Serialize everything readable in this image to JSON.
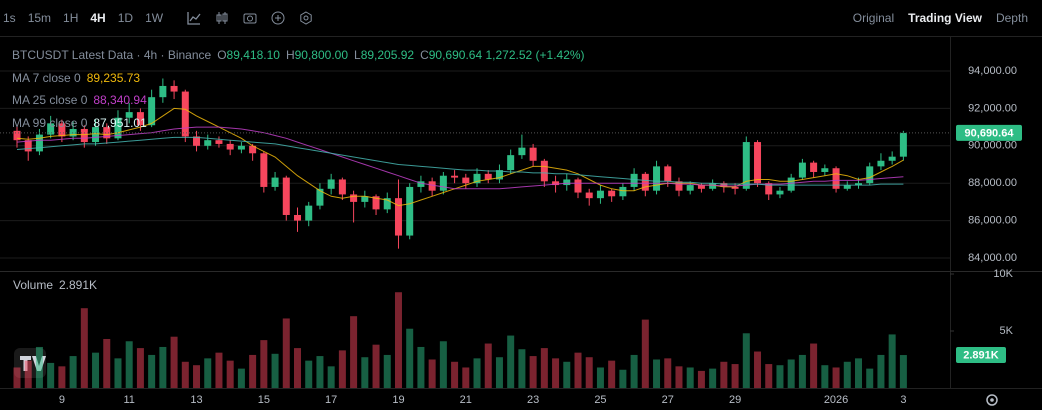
{
  "toolbar": {
    "intervals": [
      "1s",
      "15m",
      "1H",
      "4H",
      "1D",
      "1W"
    ],
    "views": [
      "Original",
      "Trading View",
      "Depth"
    ]
  },
  "chart_data": {
    "type": "candlestick",
    "title": "BTCUSDT Latest Data · 4h · Binance",
    "legend": [
      {
        "key": "O",
        "value": "89,418.10"
      },
      {
        "key": "H",
        "value": "90,800.00"
      },
      {
        "key": "L",
        "value": "89,205.92"
      },
      {
        "key": "C",
        "value": "90,690.64"
      }
    ],
    "change": "1,272.52 (+1.42%)",
    "categories": [
      null,
      null,
      null,
      null,
      "9",
      null,
      null,
      null,
      null,
      null,
      "11",
      null,
      null,
      null,
      null,
      null,
      "13",
      null,
      null,
      null,
      null,
      null,
      "15",
      null,
      null,
      null,
      null,
      null,
      "17",
      null,
      null,
      null,
      null,
      null,
      "19",
      null,
      null,
      null,
      null,
      null,
      "21",
      null,
      null,
      null,
      null,
      null,
      "23",
      null,
      null,
      null,
      null,
      null,
      "25",
      null,
      null,
      null,
      null,
      null,
      "27",
      null,
      null,
      null,
      null,
      null,
      "29",
      null,
      null,
      null,
      null,
      null,
      null,
      null,
      null,
      "2026",
      null,
      null,
      null,
      null,
      null,
      "3"
    ],
    "open": [
      90800,
      90300,
      89700,
      90600,
      91200,
      90500,
      90900,
      90200,
      91000,
      90400,
      91500,
      91800,
      91100,
      92600,
      93200,
      92900,
      90500,
      90000,
      90300,
      90100,
      89800,
      90000,
      89600,
      87800,
      88300,
      86300,
      86000,
      86800,
      87700,
      88200,
      87400,
      87000,
      87300,
      86600,
      87200,
      85200,
      87800,
      88100,
      87600,
      88400,
      88300,
      88000,
      88500,
      88200,
      88700,
      89500,
      89900,
      89200,
      88100,
      87900,
      88200,
      87500,
      87200,
      87600,
      87300,
      87800,
      88500,
      87600,
      88900,
      88100,
      87600,
      87900,
      87700,
      88000,
      87800,
      87700,
      90200,
      88000,
      87400,
      87600,
      88300,
      89100,
      88600,
      88800,
      87700,
      87900,
      88000,
      88900,
      89200,
      89418.1
    ],
    "high": [
      91100,
      90500,
      90900,
      91600,
      91400,
      91300,
      91100,
      91400,
      91200,
      91900,
      92300,
      92000,
      93000,
      93600,
      93500,
      93000,
      90800,
      90600,
      90500,
      90300,
      90200,
      90100,
      89700,
      88600,
      88400,
      86700,
      87000,
      88000,
      88500,
      88300,
      87600,
      87600,
      87400,
      87500,
      88200,
      88000,
      88400,
      88300,
      88600,
      88700,
      88500,
      88800,
      88700,
      89000,
      89800,
      90600,
      90100,
      89300,
      88400,
      88500,
      88300,
      87700,
      87900,
      87700,
      88000,
      88800,
      88600,
      89200,
      89000,
      88300,
      88100,
      88000,
      88200,
      88100,
      88000,
      90500,
      90300,
      88100,
      87800,
      88500,
      89300,
      89200,
      89000,
      88900,
      88100,
      88300,
      89100,
      89600,
      89700,
      90800
    ],
    "low": [
      89900,
      89200,
      89500,
      90400,
      90200,
      90300,
      89900,
      90000,
      90100,
      90300,
      91200,
      90800,
      91000,
      92300,
      92500,
      90200,
      89700,
      89800,
      89900,
      89500,
      89600,
      89200,
      87500,
      87600,
      86000,
      85400,
      85700,
      86600,
      87400,
      87100,
      85900,
      86700,
      86300,
      86400,
      84500,
      85000,
      87500,
      87300,
      87400,
      88000,
      87700,
      87800,
      88000,
      88000,
      88500,
      89300,
      88900,
      87800,
      87500,
      87600,
      87200,
      86800,
      86900,
      87000,
      87100,
      87600,
      87300,
      87400,
      87800,
      87300,
      87400,
      87500,
      87600,
      87500,
      87400,
      87600,
      87800,
      87100,
      87200,
      87500,
      88200,
      88300,
      88400,
      87500,
      87600,
      87700,
      87900,
      88700,
      89000,
      89205.92
    ],
    "close": [
      90300,
      89700,
      90600,
      91200,
      90500,
      90900,
      90200,
      91000,
      90400,
      91500,
      91800,
      91100,
      92600,
      93200,
      92900,
      90500,
      90000,
      90300,
      90100,
      89800,
      90000,
      89600,
      87800,
      88300,
      86300,
      86000,
      86800,
      87700,
      88200,
      87400,
      87000,
      87300,
      86600,
      87200,
      85200,
      87800,
      88100,
      87600,
      88400,
      88300,
      88000,
      88500,
      88200,
      88700,
      89500,
      89900,
      89200,
      88100,
      87900,
      88200,
      87500,
      87200,
      87600,
      87300,
      87800,
      88500,
      87600,
      88900,
      88100,
      87600,
      87900,
      87700,
      88000,
      87800,
      87700,
      90200,
      88000,
      87400,
      87600,
      88300,
      89100,
      88600,
      88800,
      87700,
      87900,
      88000,
      88900,
      89200,
      89418.1,
      90690.64
    ],
    "volume": [
      1800,
      2400,
      3600,
      2200,
      1900,
      2800,
      7000,
      3100,
      4300,
      2600,
      4100,
      3500,
      2900,
      3600,
      4500,
      2300,
      2000,
      2600,
      3100,
      2400,
      1700,
      2900,
      4200,
      3000,
      6100,
      3500,
      2400,
      2800,
      1900,
      3300,
      6300,
      2700,
      3800,
      2900,
      8400,
      5200,
      3600,
      2500,
      4100,
      2300,
      1800,
      2600,
      3900,
      2700,
      4600,
      3400,
      2800,
      3500,
      2600,
      2300,
      3100,
      2700,
      1800,
      2400,
      1600,
      2900,
      6000,
      2500,
      2600,
      1900,
      1800,
      1500,
      1700,
      2300,
      2100,
      4800,
      3200,
      2100,
      2000,
      2500,
      2900,
      3900,
      2000,
      1800,
      2300,
      2600,
      1700,
      2900,
      4700,
      2891
    ],
    "ma": [
      {
        "name": "MA 7 close 0",
        "last_label": "89,235.73",
        "color": "#f0b90b",
        "values": [
          90400,
          90350,
          90400,
          90500,
          90550,
          90600,
          90600,
          90650,
          90600,
          90700,
          90850,
          91000,
          91200,
          91600,
          92000,
          91950,
          91600,
          91300,
          91000,
          90700,
          90400,
          90000,
          89700,
          89400,
          88900,
          88400,
          88000,
          87600,
          87300,
          87200,
          87300,
          87300,
          87200,
          87100,
          86800,
          86900,
          87100,
          87300,
          87500,
          87700,
          87900,
          88100,
          88200,
          88300,
          88500,
          88700,
          88900,
          88900,
          88800,
          88700,
          88500,
          88200,
          87900,
          87700,
          87600,
          87600,
          87800,
          87900,
          88000,
          88000,
          88000,
          87900,
          87900,
          87800,
          87800,
          88100,
          88200,
          88200,
          88100,
          88100,
          88200,
          88300,
          88400,
          88500,
          88400,
          88200,
          88300,
          88600,
          88900,
          89235.73
        ]
      },
      {
        "name": "MA 25 close 0",
        "last_label": "88,340.94",
        "color": "#c03fc8",
        "values": [
          90200,
          90250,
          90300,
          90300,
          90350,
          90400,
          90400,
          90450,
          90500,
          90550,
          90600,
          90650,
          90700,
          90800,
          90900,
          90950,
          91000,
          91000,
          91000,
          90950,
          90900,
          90800,
          90700,
          90550,
          90400,
          90200,
          90000,
          89800,
          89600,
          89400,
          89200,
          89000,
          88800,
          88600,
          88400,
          88200,
          88000,
          87900,
          87800,
          87700,
          87700,
          87700,
          87700,
          87700,
          87750,
          87800,
          87850,
          87900,
          87950,
          88000,
          88000,
          88000,
          88000,
          88000,
          88000,
          88000,
          88000,
          88000,
          88000,
          87950,
          87950,
          87900,
          87900,
          87850,
          87850,
          87900,
          87950,
          87950,
          87950,
          88000,
          88050,
          88100,
          88100,
          88150,
          88150,
          88150,
          88200,
          88250,
          88300,
          88340.94
        ]
      },
      {
        "name": "MA 99 close 0",
        "last_label": "87,951.01",
        "color": "#45b5b0",
        "values": [
          89800,
          89850,
          89900,
          89950,
          90000,
          90050,
          90100,
          90100,
          90150,
          90200,
          90250,
          90300,
          90350,
          90400,
          90450,
          90450,
          90450,
          90400,
          90350,
          90300,
          90250,
          90200,
          90150,
          90100,
          90000,
          89900,
          89800,
          89700,
          89600,
          89500,
          89400,
          89300,
          89200,
          89100,
          89000,
          88950,
          88900,
          88850,
          88800,
          88750,
          88700,
          88700,
          88650,
          88650,
          88600,
          88600,
          88550,
          88550,
          88500,
          88500,
          88450,
          88400,
          88350,
          88300,
          88250,
          88200,
          88150,
          88100,
          88100,
          88050,
          88050,
          88000,
          88000,
          87950,
          87950,
          87950,
          87950,
          87900,
          87900,
          87900,
          87900,
          87900,
          87900,
          87900,
          87900,
          87900,
          87900,
          87950,
          87950,
          87951.01
        ]
      }
    ],
    "ylim": [
      95818,
      83358
    ],
    "yticks": [
      {
        "value": 94000,
        "label": "94,000.00"
      },
      {
        "value": 92000,
        "label": "92,000.00"
      },
      {
        "value": 90000,
        "label": "90,000.00"
      },
      {
        "value": 88000,
        "label": "88,000.00"
      },
      {
        "value": 86000,
        "label": "86,000.00"
      },
      {
        "value": 84000,
        "label": "84,000.00"
      }
    ],
    "volume_axis": {
      "label": "Volume",
      "value_label": "2.891K",
      "ylim": [
        0,
        10000
      ],
      "yticks": [
        {
          "value": 10000,
          "label": "10K"
        },
        {
          "value": 5000,
          "label": "5K"
        }
      ]
    },
    "up_color": "#2ebd85",
    "down_color": "#f6465d",
    "grid": true
  }
}
